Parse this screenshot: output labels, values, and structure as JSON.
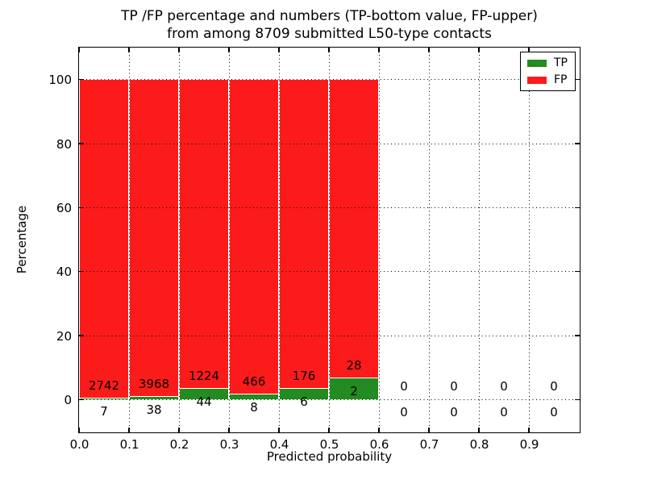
{
  "title": {
    "line1": "TP /FP percentage and numbers (TP-bottom value, FP-upper)",
    "line2": "from among 8709 submitted L50-type contacts"
  },
  "chart_data": {
    "type": "bar",
    "stacked": true,
    "normalized_to_percent": true,
    "title": "TP /FP percentage and numbers (TP-bottom value, FP-upper) from among 8709 submitted L50-type contacts",
    "xlabel": "Predicted probability",
    "ylabel": "Percentage",
    "total_contacts": 8709,
    "bin_width": 0.1,
    "bin_starts": [
      0.0,
      0.1,
      0.2,
      0.3,
      0.4,
      0.5,
      0.6,
      0.7,
      0.8,
      0.9
    ],
    "xticks": [
      "0.0",
      "0.1",
      "0.2",
      "0.3",
      "0.4",
      "0.5",
      "0.6",
      "0.7",
      "0.8",
      "0.9"
    ],
    "yticks": [
      "0",
      "20",
      "40",
      "60",
      "80",
      "100"
    ],
    "ytick_values": [
      0,
      20,
      40,
      60,
      80,
      100
    ],
    "xlim": [
      0.0,
      1.0
    ],
    "ylim": [
      -10,
      110
    ],
    "grid": true,
    "grid_style": "dotted",
    "legend_position": "upper right",
    "series": [
      {
        "name": "TP",
        "color": "#228b22",
        "counts": [
          7,
          38,
          44,
          8,
          6,
          2,
          0,
          0,
          0,
          0
        ]
      },
      {
        "name": "FP",
        "color": "#fb1b1b",
        "counts": [
          2742,
          3968,
          1224,
          466,
          176,
          28,
          0,
          0,
          0,
          0
        ]
      }
    ],
    "bar_edge_color": "#ffffff",
    "frame_color": "#000000"
  }
}
